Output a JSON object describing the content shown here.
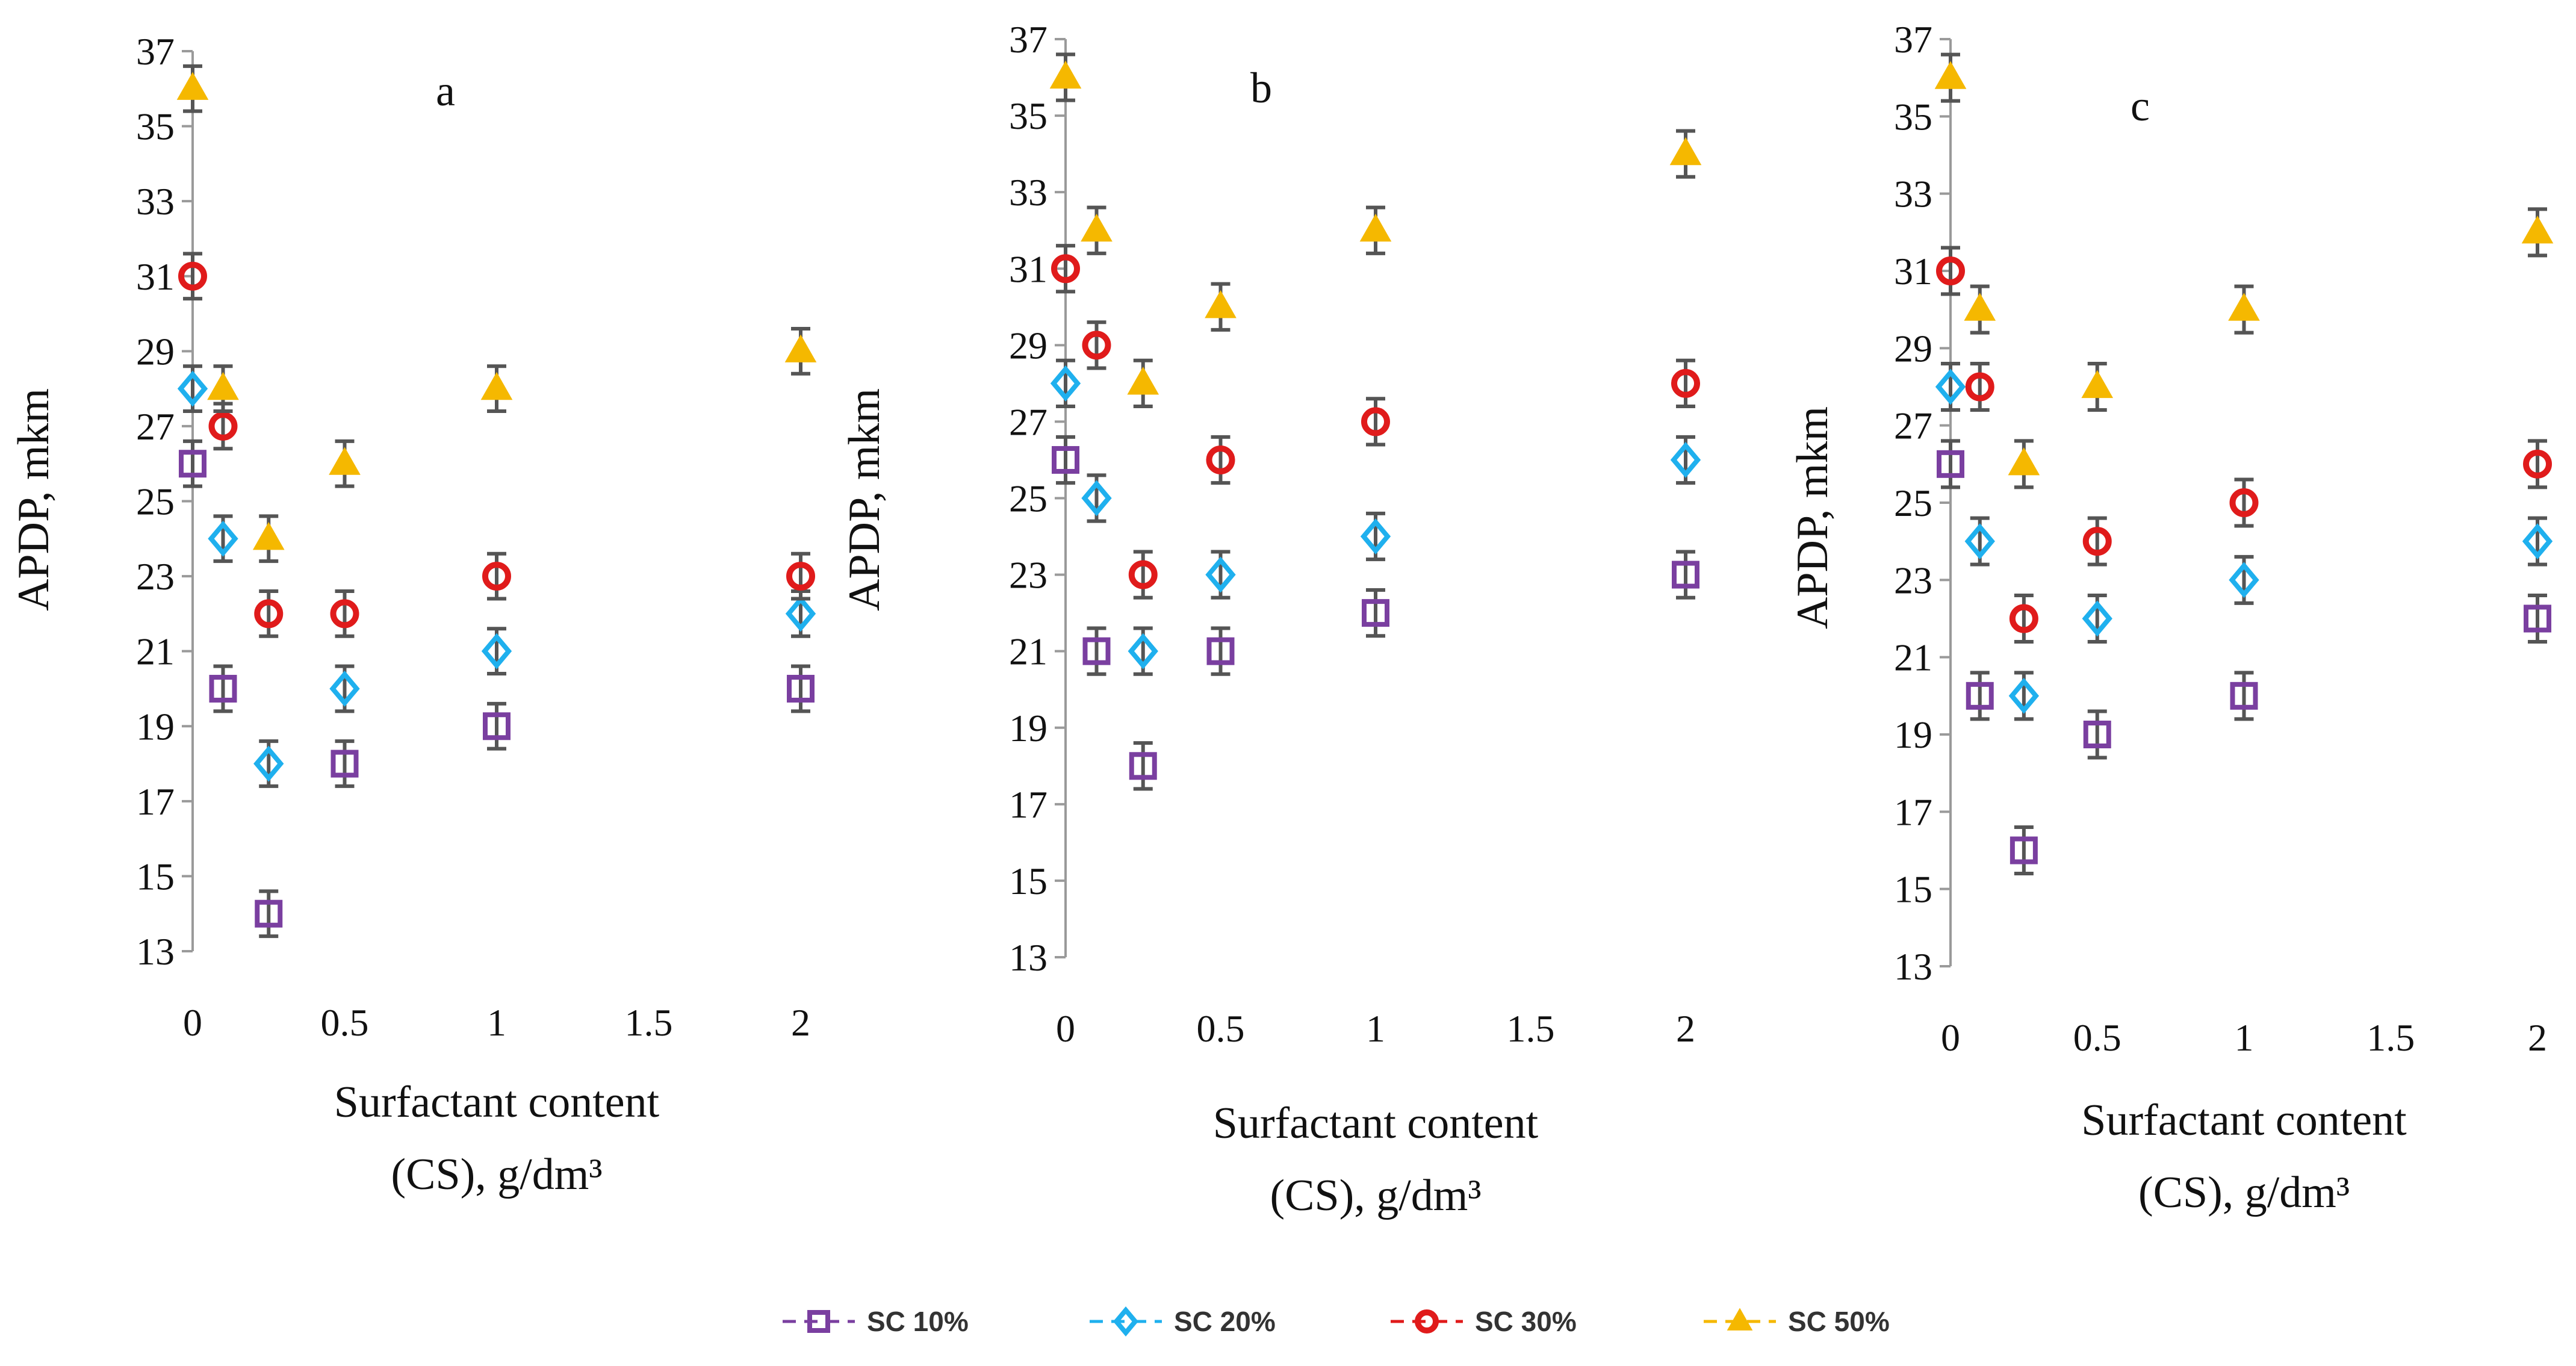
{
  "chart_data": [
    {
      "type": "scatter",
      "panel": "a",
      "ylabel": "APDP, mkm",
      "xlabel_line1": "Surfactant content",
      "xlabel_line2": "(CS), g/dm³",
      "ylim": [
        13,
        37
      ],
      "yticks": [
        13,
        15,
        17,
        19,
        21,
        23,
        25,
        27,
        29,
        31,
        33,
        35,
        37
      ],
      "xlim": [
        0,
        2
      ],
      "xticks": [
        0,
        0.5,
        1,
        1.5,
        2
      ],
      "xtick_labels": [
        "0",
        "0.5",
        "1",
        "1.5",
        "2"
      ],
      "x": [
        0,
        0.1,
        0.25,
        0.5,
        1,
        2
      ],
      "series": [
        {
          "name": "SC 10%",
          "values": [
            26,
            20,
            14,
            18,
            19,
            20
          ]
        },
        {
          "name": "SC 20%",
          "values": [
            28,
            24,
            18,
            20,
            21,
            22
          ]
        },
        {
          "name": "SC 30%",
          "values": [
            31,
            27,
            22,
            22,
            23,
            23
          ]
        },
        {
          "name": "SC 50%",
          "values": [
            36,
            28,
            24,
            26,
            28,
            29
          ]
        }
      ]
    },
    {
      "type": "scatter",
      "panel": "b",
      "ylabel": "APDP, mkm",
      "xlabel_line1": "Surfactant content",
      "xlabel_line2": "(CS), g/dm³",
      "ylim": [
        13,
        37
      ],
      "yticks": [
        13,
        15,
        17,
        19,
        21,
        23,
        25,
        27,
        29,
        31,
        33,
        35,
        37
      ],
      "xlim": [
        0,
        2
      ],
      "xticks": [
        0,
        0.5,
        1,
        1.5,
        2
      ],
      "xtick_labels": [
        "0",
        "0.5",
        "1",
        "1.5",
        "2"
      ],
      "x": [
        0,
        0.1,
        0.25,
        0.5,
        1,
        2
      ],
      "series": [
        {
          "name": "SC 10%",
          "values": [
            26,
            21,
            18,
            21,
            22,
            23
          ]
        },
        {
          "name": "SC 20%",
          "values": [
            28,
            25,
            21,
            23,
            24,
            26
          ]
        },
        {
          "name": "SC 30%",
          "values": [
            31,
            29,
            23,
            26,
            27,
            28
          ]
        },
        {
          "name": "SC 50%",
          "values": [
            36,
            32,
            28,
            30,
            32,
            34
          ]
        }
      ]
    },
    {
      "type": "scatter",
      "panel": "c",
      "ylabel": "APDP, mkm",
      "xlabel_line1": "Surfactant content",
      "xlabel_line2": "(CS), g/dm³",
      "ylim": [
        13,
        37
      ],
      "yticks": [
        13,
        15,
        17,
        19,
        21,
        23,
        25,
        27,
        29,
        31,
        33,
        35,
        37
      ],
      "xlim": [
        0,
        2
      ],
      "xticks": [
        0,
        0.5,
        1,
        1.5,
        2
      ],
      "xtick_labels": [
        "0",
        "0.5",
        "1",
        "1.5",
        "2"
      ],
      "x": [
        0,
        0.1,
        0.25,
        0.5,
        1,
        2
      ],
      "series": [
        {
          "name": "SC 10%",
          "values": [
            26,
            20,
            16,
            19,
            20,
            22
          ]
        },
        {
          "name": "SC 20%",
          "values": [
            28,
            24,
            20,
            22,
            23,
            24
          ]
        },
        {
          "name": "SC 30%",
          "values": [
            31,
            28,
            22,
            24,
            25,
            26
          ]
        },
        {
          "name": "SC 50%",
          "values": [
            36,
            30,
            26,
            28,
            30,
            32
          ]
        }
      ]
    }
  ],
  "legend": [
    {
      "name": "SC 10%",
      "marker": "square",
      "color": "#7a3fa0"
    },
    {
      "name": "SC 20%",
      "marker": "diamond",
      "color": "#1fb0ee"
    },
    {
      "name": "SC 30%",
      "marker": "circle",
      "color": "#e01b1b"
    },
    {
      "name": "SC 50%",
      "marker": "triangle",
      "color": "#f5b800"
    }
  ],
  "error_bar_color": "#555555"
}
